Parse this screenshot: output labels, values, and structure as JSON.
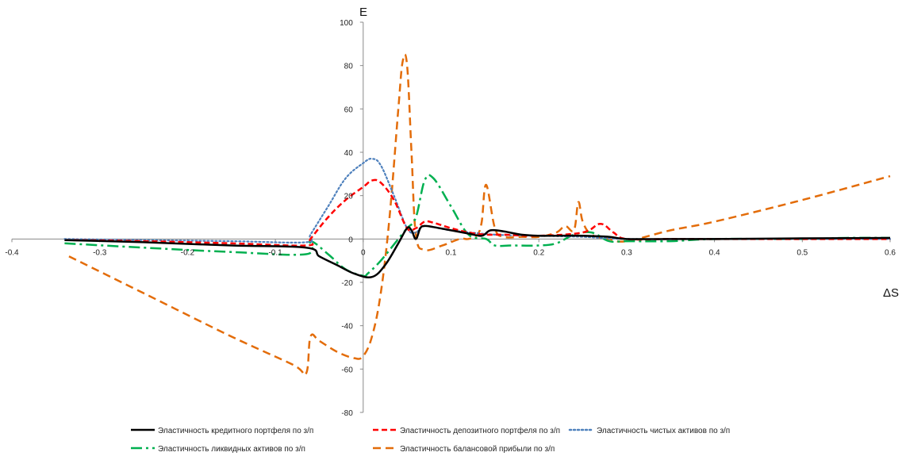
{
  "chart_data": {
    "type": "line",
    "title": "",
    "xlabel": "ΔS",
    "ylabel": "E",
    "xlim": [
      -0.4,
      0.6
    ],
    "ylim": [
      -80,
      100
    ],
    "xticks": [
      -0.4,
      -0.3,
      -0.2,
      -0.1,
      0,
      0.1,
      0.2,
      0.3,
      0.4,
      0.5,
      0.6
    ],
    "xtick_labels": [
      "-0.4",
      "-0.3",
      "-0.2",
      "-0.1",
      "0",
      "0.1",
      "0.2",
      "0.3",
      "0.4",
      "0.5",
      "0.6"
    ],
    "yticks": [
      -80,
      -60,
      -40,
      -20,
      0,
      20,
      40,
      60,
      80,
      100
    ],
    "ytick_labels": [
      "-80",
      "-60",
      "-40",
      "-20",
      "0",
      "20",
      "40",
      "60",
      "80",
      "100"
    ],
    "grid": false,
    "legend_position": "bottom",
    "series": [
      {
        "name": "Эластичность кредитного портфеля по з/п",
        "color": "#000000",
        "dash": "solid",
        "x": [
          -0.34,
          -0.25,
          -0.15,
          -0.065,
          -0.05,
          -0.03,
          -0.01,
          0.01,
          0.025,
          0.04,
          0.05,
          0.055,
          0.06,
          0.065,
          0.07,
          0.08,
          0.1,
          0.12,
          0.135,
          0.145,
          0.16,
          0.18,
          0.2,
          0.22,
          0.25,
          0.28,
          0.3,
          0.35,
          0.4,
          0.5,
          0.6
        ],
        "y": [
          -0.5,
          -1.5,
          -3,
          -4,
          -8,
          -12,
          -16,
          -17.5,
          -12,
          -2,
          5,
          4,
          0,
          5,
          6,
          5.5,
          4,
          2.5,
          1.5,
          4,
          3.5,
          2,
          1.5,
          1.5,
          1.5,
          1,
          0,
          0,
          0,
          0.3,
          0.5
        ]
      },
      {
        "name": "Эластичность депозитного портфеля по з/п",
        "color": "#ff0000",
        "dash": "dashed",
        "x": [
          -0.34,
          -0.25,
          -0.15,
          -0.065,
          -0.06,
          -0.04,
          -0.02,
          0,
          0.01,
          0.02,
          0.035,
          0.05,
          0.06,
          0.07,
          0.08,
          0.1,
          0.12,
          0.14,
          0.16,
          0.2,
          0.25,
          0.27,
          0.285,
          0.3,
          0.35,
          0.4,
          0.5,
          0.6
        ],
        "y": [
          -0.5,
          -1,
          -2,
          -3,
          0,
          10,
          18,
          24,
          27,
          26,
          18,
          5,
          5,
          8,
          7.5,
          5,
          3,
          2,
          2,
          1.5,
          3,
          7,
          3,
          0,
          0,
          0,
          0,
          0
        ]
      },
      {
        "name": "Эластичность чистых активов по з/п",
        "color": "#4f81bd",
        "dash": "dotted",
        "x": [
          -0.34,
          -0.25,
          -0.15,
          -0.065,
          -0.06,
          -0.04,
          -0.02,
          0,
          0.01,
          0.02,
          0.035,
          0.05,
          0.06,
          0.07,
          0.1,
          0.15,
          0.2,
          0.25,
          0.3,
          0.4,
          0.5,
          0.6
        ],
        "y": [
          0,
          -0.5,
          -1,
          -1.5,
          2,
          15,
          28,
          35,
          37,
          34,
          20,
          5,
          3,
          6,
          4,
          2,
          1.5,
          1,
          0,
          0,
          0,
          0
        ]
      },
      {
        "name": "Эластичность ликвидных активов по з/п",
        "color": "#00b050",
        "dash": "dashdot",
        "x": [
          -0.34,
          -0.25,
          -0.15,
          -0.065,
          -0.06,
          -0.04,
          -0.02,
          0,
          0.005,
          0.02,
          0.04,
          0.05,
          0.06,
          0.07,
          0.08,
          0.1,
          0.12,
          0.14,
          0.15,
          0.17,
          0.2,
          0.22,
          0.24,
          0.26,
          0.28,
          0.3,
          0.35,
          0.4,
          0.5,
          0.55,
          0.6
        ],
        "y": [
          -2,
          -4,
          -6,
          -7,
          -1,
          -7,
          -14,
          -17,
          -16,
          -10,
          0,
          5,
          10,
          27,
          28,
          15,
          2,
          0,
          -3,
          -3,
          -3,
          -2,
          2,
          3,
          -1,
          -1,
          -1,
          0,
          0,
          0.5,
          0.5
        ]
      },
      {
        "name": "Эластичность балансовой прибыли по з/п",
        "color": "#e36c09",
        "dash": "longdash",
        "x": [
          -0.335,
          -0.25,
          -0.15,
          -0.08,
          -0.065,
          -0.06,
          -0.05,
          -0.03,
          -0.01,
          0,
          0.01,
          0.02,
          0.03,
          0.04,
          0.045,
          0.05,
          0.055,
          0.06,
          0.07,
          0.09,
          0.11,
          0.12,
          0.13,
          0.135,
          0.14,
          0.15,
          0.16,
          0.18,
          0.2,
          0.22,
          0.23,
          0.24,
          0.245,
          0.25,
          0.26,
          0.28,
          0.3,
          0.35,
          0.4,
          0.5,
          0.6
        ],
        "y": [
          -8,
          -25,
          -45,
          -58,
          -62,
          -45,
          -47,
          -52,
          -55,
          -54,
          -45,
          -25,
          10,
          60,
          82,
          80,
          40,
          2,
          -5,
          -3,
          0,
          0,
          2,
          8,
          25,
          5,
          1,
          1,
          1,
          3,
          6,
          4,
          17,
          8,
          2,
          0,
          -1,
          4,
          8,
          18,
          29
        ]
      }
    ]
  }
}
